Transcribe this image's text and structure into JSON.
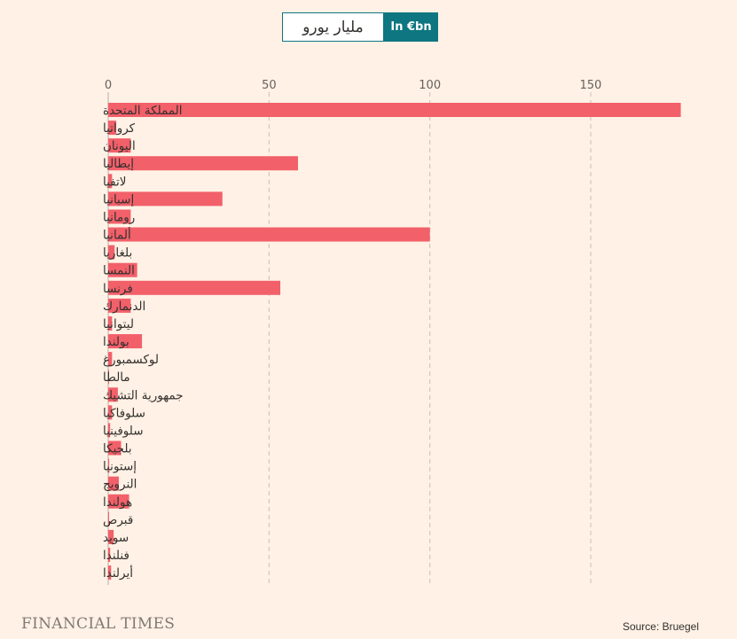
{
  "toggle": {
    "option_arabic": "مليار يورو",
    "option_english": "In €bn",
    "selected": "option_english",
    "colors": {
      "active_bg": "#0d7680",
      "inactive_bg": "#ffffff"
    }
  },
  "chart_data": {
    "type": "bar",
    "orientation": "horizontal",
    "title": "",
    "xlabel": "",
    "ylabel": "",
    "xlim": [
      0,
      178
    ],
    "x_ticks": [
      0,
      50,
      100,
      150
    ],
    "grid": true,
    "bar_color": "#f2606a",
    "categories": [
      "المملكة المتحدة",
      "كرواتيا",
      "اليونان",
      "إيطاليا",
      "لاتفيا",
      "إسبانيا",
      "رومانيا",
      "ألمانيا",
      "بلغاريا",
      "النمسا",
      "فرنسا",
      "الدنمارك",
      "ليتوانيا",
      "بولندا",
      "لوكسمبورغ",
      "مالطا",
      "جمهورية التشيك",
      "سلوفاكيا",
      "سلوفينيا",
      "بلجيكا",
      "إستونيا",
      "النرويج",
      "هولندا",
      "قبرص",
      "سويد",
      "فنلندا",
      "أيرلندا"
    ],
    "values": [
      178,
      2.5,
      7,
      59,
      1.2,
      35.5,
      7,
      100,
      2,
      9,
      53.5,
      7,
      1.2,
      10.5,
      1.2,
      0.2,
      3,
      1.2,
      0.6,
      4,
      0.3,
      3.3,
      6.5,
      0.2,
      1.7,
      0.6,
      0.9
    ]
  },
  "footer": {
    "logo": "FINANCIAL TIMES",
    "source": "Source: Bruegel"
  }
}
